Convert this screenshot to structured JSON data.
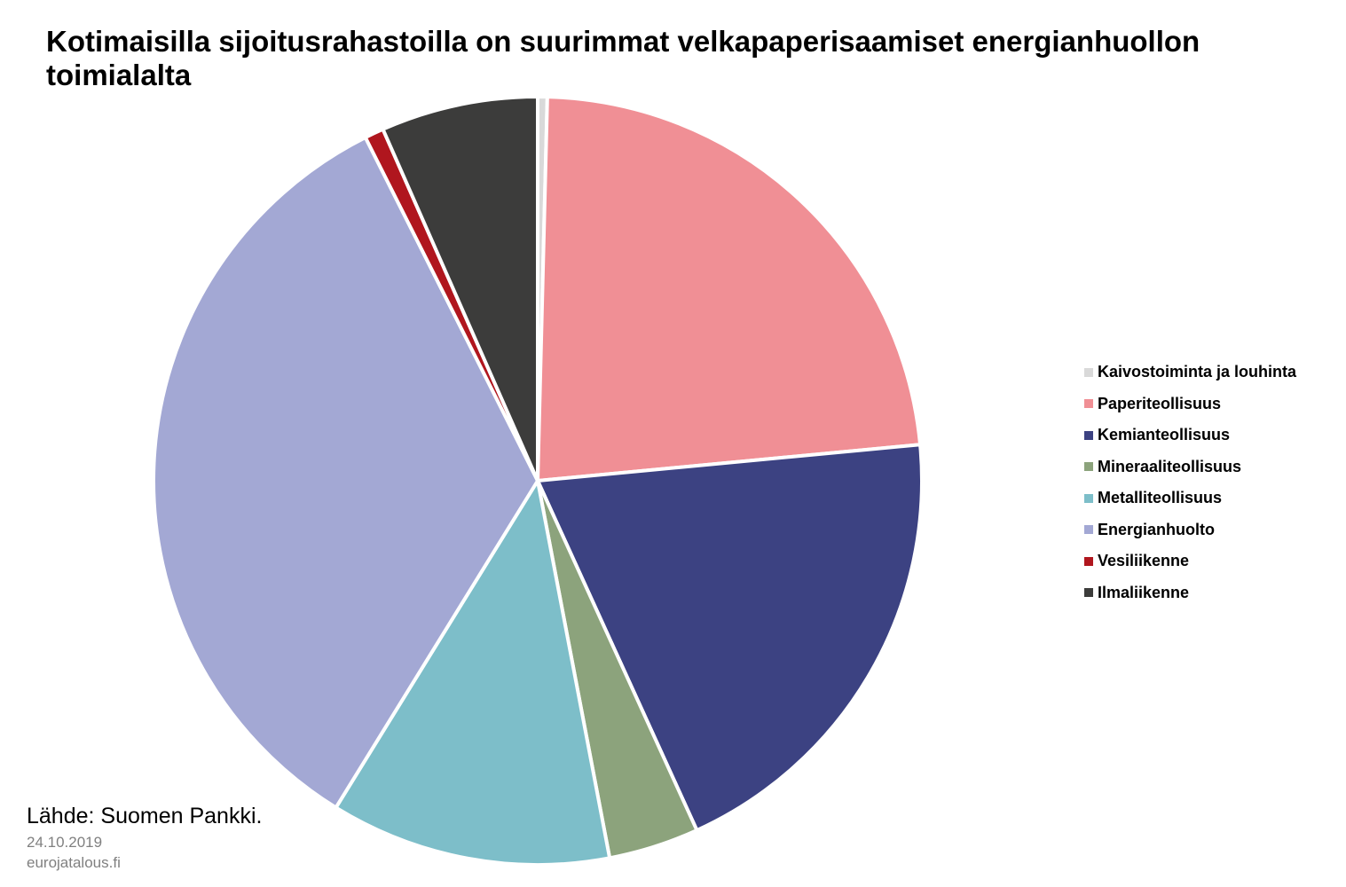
{
  "chart_data": {
    "type": "pie",
    "title": "Kotimaisilla sijoitusrahastoilla on suurimmat velkapaperisaamiset energianhuollon toimialalta",
    "slices": [
      {
        "label": "Kaivostoiminta ja louhinta",
        "value": 0.4,
        "color": "#d9d9d9"
      },
      {
        "label": "Paperiteollisuus",
        "value": 23.1,
        "color": "#f08f95"
      },
      {
        "label": "Kemianteollisuus",
        "value": 19.7,
        "color": "#3c4282"
      },
      {
        "label": "Mineraaliteollisuus",
        "value": 3.8,
        "color": "#8ca37c"
      },
      {
        "label": "Metalliteollisuus",
        "value": 11.8,
        "color": "#7dbec9"
      },
      {
        "label": "Energianhuolto",
        "value": 33.8,
        "color": "#a3a8d4"
      },
      {
        "label": "Vesiliikenne",
        "value": 0.8,
        "color": "#b0161e"
      },
      {
        "label": "Ilmaliikenne",
        "value": 6.6,
        "color": "#3c3c3b"
      }
    ],
    "start_angle": "top",
    "direction": "clockwise",
    "legend_position": "right"
  },
  "footer": {
    "source": "Lähde: Suomen Pankki.",
    "date": "24.10.2019",
    "site": "eurojatalous.fi"
  }
}
